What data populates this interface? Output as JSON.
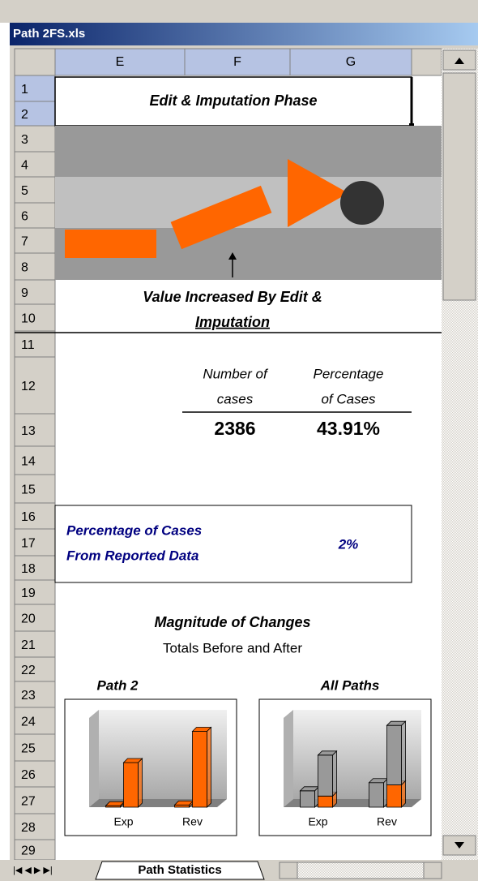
{
  "window": {
    "title": "Path 2FS.xls"
  },
  "sheet": {
    "columns": [
      "E",
      "F",
      "G"
    ],
    "rows": [
      "1",
      "2",
      "3",
      "4",
      "5",
      "6",
      "7",
      "8",
      "9",
      "10",
      "11",
      "12",
      "13",
      "14",
      "15",
      "16",
      "17",
      "18",
      "19",
      "20",
      "21",
      "22",
      "23",
      "24",
      "25",
      "26",
      "27",
      "28",
      "29"
    ],
    "tab": "Path Statistics"
  },
  "content": {
    "phase_title": "Edit & Imputation Phase",
    "graphic_caption": [
      "Value Increased By Edit &",
      "Imputation"
    ],
    "stats": {
      "headers": [
        [
          "Number of",
          "cases"
        ],
        [
          "Percentage",
          "of Cases"
        ]
      ],
      "values": [
        "2386",
        "43.91%"
      ]
    },
    "reported": {
      "label": [
        "Percentage of Cases",
        "From Reported Data"
      ],
      "value": "2%"
    },
    "magnitude": {
      "title": "Magnitude of Changes",
      "subtitle": "Totals Before and After"
    }
  },
  "chart_data": [
    {
      "type": "bar",
      "title": "Path 2",
      "categories": [
        "Exp",
        "Rev"
      ],
      "ylim": [
        0,
        120
      ],
      "series": [
        {
          "color": "#ff6600",
          "values": [
            2,
            3
          ],
          "bar": 0
        },
        {
          "color": "#ff6600",
          "values": [
            60,
            102
          ],
          "bar": 1
        }
      ]
    },
    {
      "type": "bar",
      "title": "All Paths",
      "categories": [
        "Exp",
        "Rev"
      ],
      "ylim": [
        0,
        120
      ],
      "series": [
        {
          "color": "#999999",
          "values": [
            22,
            33
          ],
          "bar": 0
        },
        {
          "color": "#ff6600",
          "values": [
            15,
            30
          ],
          "bar": 1
        },
        {
          "color": "#999999",
          "values": [
            55,
            80
          ],
          "bar": 1
        }
      ]
    }
  ]
}
